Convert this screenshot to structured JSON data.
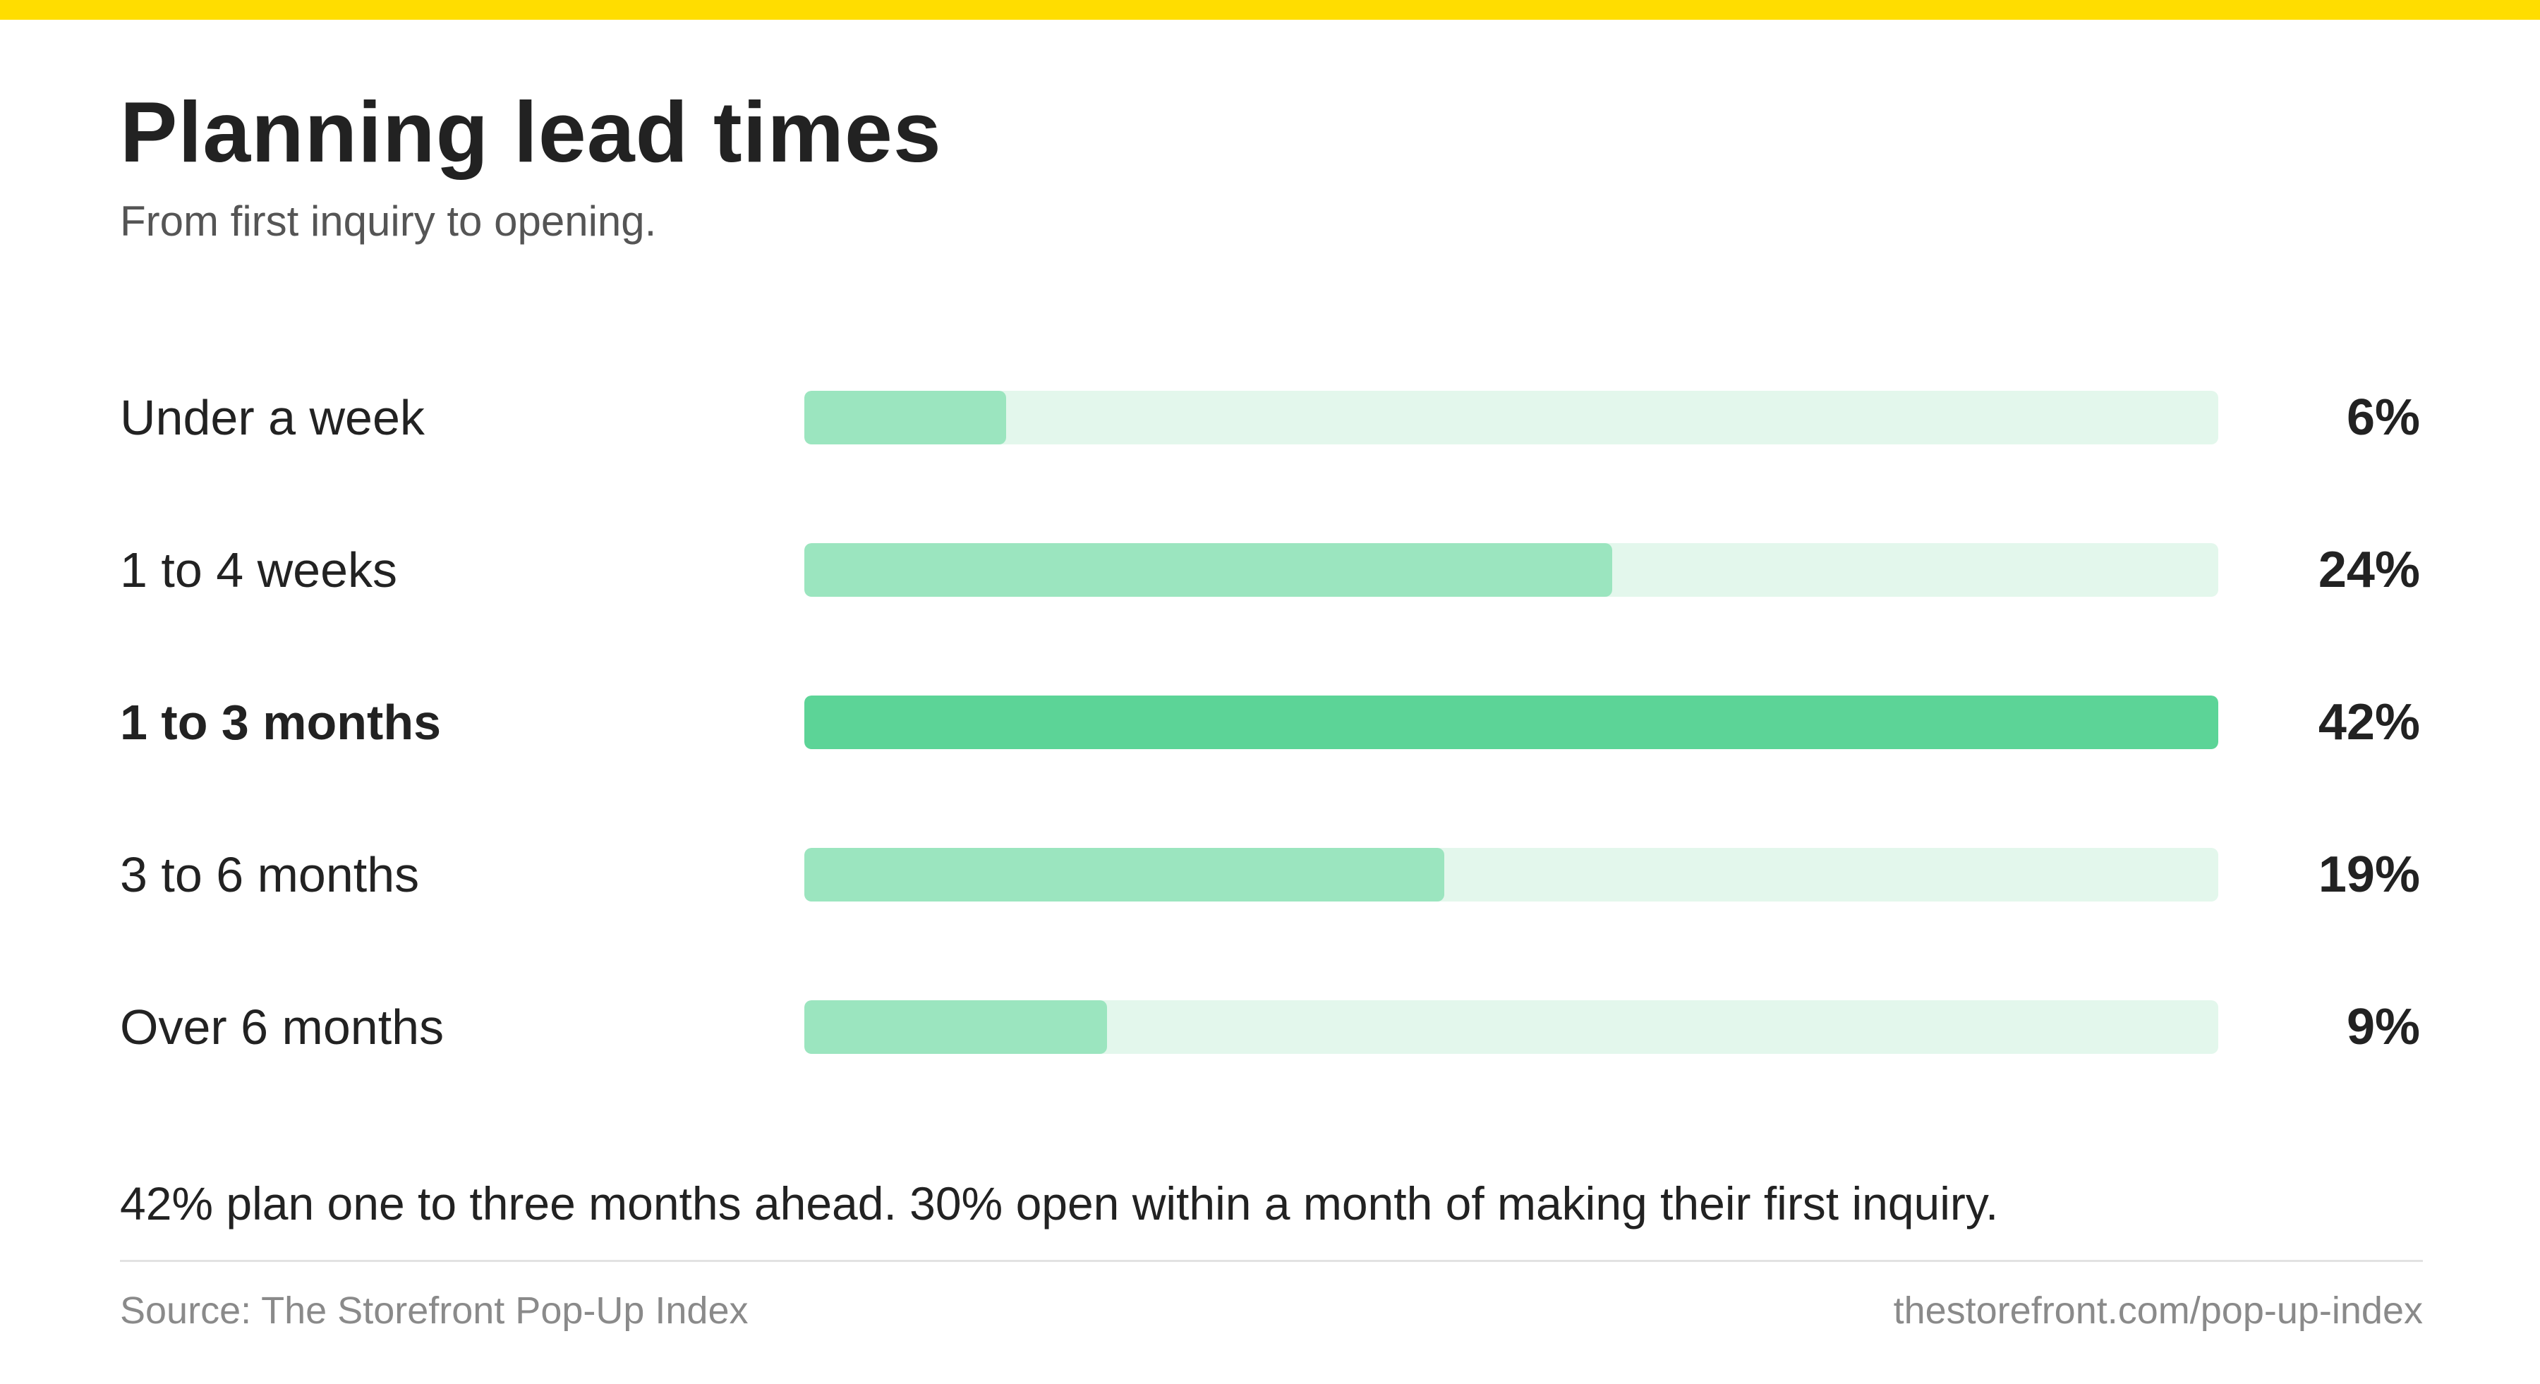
{
  "header": {
    "title": "Planning lead times",
    "subtitle": "From first inquiry to opening."
  },
  "chart_data": {
    "type": "bar",
    "orientation": "horizontal",
    "title": "Planning lead times",
    "subtitle": "From first inquiry to opening.",
    "categories": [
      "Under a week",
      "1 to 4 weeks",
      "1 to 3 months",
      "3 to 6 months",
      "Over 6 months"
    ],
    "values": [
      6,
      24,
      42,
      19,
      9
    ],
    "value_labels": [
      "6%",
      "24%",
      "42%",
      "19%",
      "9%"
    ],
    "unit": "%",
    "xlim": [
      0,
      42
    ],
    "highlight_index": 2,
    "grid": false,
    "legend": "none",
    "colors": {
      "bar": "#9BE5BF",
      "highlight": "#5CD497",
      "track": "#E3F7EC",
      "accent_band": "#FFDD00"
    }
  },
  "footer": {
    "takeaway": "42% plan one to three months ahead. 30% open within a month of making their first inquiry.",
    "source": "Source: The Storefront Pop-Up Index",
    "url": "thestorefront.com/pop-up-index"
  }
}
